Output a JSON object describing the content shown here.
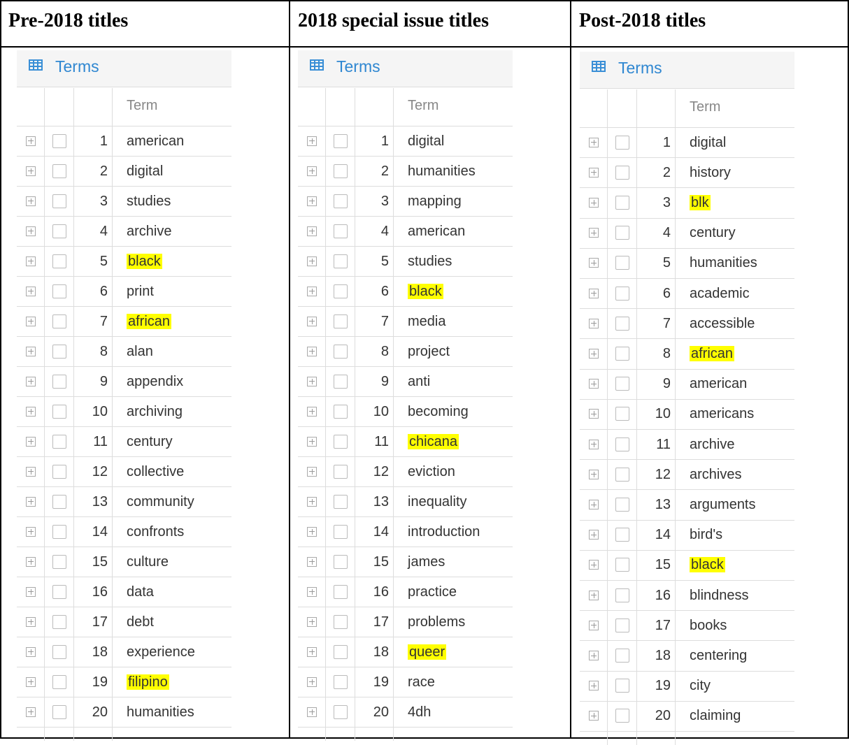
{
  "columns": [
    {
      "title": "Pre-2018 titles",
      "panel_title": "Terms",
      "column_header": "Term",
      "rows": [
        {
          "rank": 1,
          "term": "american"
        },
        {
          "rank": 2,
          "term": "digital"
        },
        {
          "rank": 3,
          "term": "studies"
        },
        {
          "rank": 4,
          "term": "archive"
        },
        {
          "rank": 5,
          "term": "black",
          "highlight": true
        },
        {
          "rank": 6,
          "term": "print"
        },
        {
          "rank": 7,
          "term": "african",
          "highlight": true
        },
        {
          "rank": 8,
          "term": "alan"
        },
        {
          "rank": 9,
          "term": "appendix"
        },
        {
          "rank": 10,
          "term": "archiving"
        },
        {
          "rank": 11,
          "term": "century"
        },
        {
          "rank": 12,
          "term": "collective"
        },
        {
          "rank": 13,
          "term": "community"
        },
        {
          "rank": 14,
          "term": "confronts"
        },
        {
          "rank": 15,
          "term": "culture"
        },
        {
          "rank": 16,
          "term": "data"
        },
        {
          "rank": 17,
          "term": "debt"
        },
        {
          "rank": 18,
          "term": "experience"
        },
        {
          "rank": 19,
          "term": "filipino",
          "highlight": true
        },
        {
          "rank": 20,
          "term": "humanities"
        }
      ]
    },
    {
      "title": "2018 special issue titles",
      "panel_title": "Terms",
      "column_header": "Term",
      "rows": [
        {
          "rank": 1,
          "term": "digital"
        },
        {
          "rank": 2,
          "term": "humanities"
        },
        {
          "rank": 3,
          "term": "mapping"
        },
        {
          "rank": 4,
          "term": "american"
        },
        {
          "rank": 5,
          "term": "studies"
        },
        {
          "rank": 6,
          "term": "black",
          "highlight": true
        },
        {
          "rank": 7,
          "term": "media"
        },
        {
          "rank": 8,
          "term": "project"
        },
        {
          "rank": 9,
          "term": "anti"
        },
        {
          "rank": 10,
          "term": "becoming"
        },
        {
          "rank": 11,
          "term": "chicana",
          "highlight": true
        },
        {
          "rank": 12,
          "term": "eviction"
        },
        {
          "rank": 13,
          "term": "inequality"
        },
        {
          "rank": 14,
          "term": "introduction"
        },
        {
          "rank": 15,
          "term": "james"
        },
        {
          "rank": 16,
          "term": "practice"
        },
        {
          "rank": 17,
          "term": "problems"
        },
        {
          "rank": 18,
          "term": "queer",
          "highlight": true
        },
        {
          "rank": 19,
          "term": "race"
        },
        {
          "rank": 20,
          "term": "4dh"
        }
      ]
    },
    {
      "title": "Post-2018 titles",
      "panel_title": "Terms",
      "column_header": "Term",
      "rows": [
        {
          "rank": 1,
          "term": "digital"
        },
        {
          "rank": 2,
          "term": "history"
        },
        {
          "rank": 3,
          "term": "blk",
          "highlight": true
        },
        {
          "rank": 4,
          "term": "century"
        },
        {
          "rank": 5,
          "term": "humanities"
        },
        {
          "rank": 6,
          "term": "academic"
        },
        {
          "rank": 7,
          "term": "accessible"
        },
        {
          "rank": 8,
          "term": "african",
          "highlight": true
        },
        {
          "rank": 9,
          "term": "american"
        },
        {
          "rank": 10,
          "term": "americans"
        },
        {
          "rank": 11,
          "term": "archive"
        },
        {
          "rank": 12,
          "term": "archives"
        },
        {
          "rank": 13,
          "term": "arguments"
        },
        {
          "rank": 14,
          "term": "bird's"
        },
        {
          "rank": 15,
          "term": "black",
          "highlight": true
        },
        {
          "rank": 16,
          "term": "blindness"
        },
        {
          "rank": 17,
          "term": "books"
        },
        {
          "rank": 18,
          "term": "centering"
        },
        {
          "rank": 19,
          "term": "city"
        },
        {
          "rank": 20,
          "term": "claiming"
        }
      ]
    }
  ]
}
